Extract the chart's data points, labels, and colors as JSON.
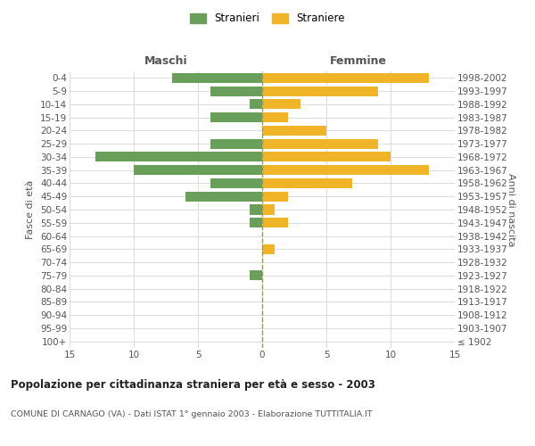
{
  "age_groups": [
    "100+",
    "95-99",
    "90-94",
    "85-89",
    "80-84",
    "75-79",
    "70-74",
    "65-69",
    "60-64",
    "55-59",
    "50-54",
    "45-49",
    "40-44",
    "35-39",
    "30-34",
    "25-29",
    "20-24",
    "15-19",
    "10-14",
    "5-9",
    "0-4"
  ],
  "birth_years": [
    "≤ 1902",
    "1903-1907",
    "1908-1912",
    "1913-1917",
    "1918-1922",
    "1923-1927",
    "1928-1932",
    "1933-1937",
    "1938-1942",
    "1943-1947",
    "1948-1952",
    "1953-1957",
    "1958-1962",
    "1963-1967",
    "1968-1972",
    "1973-1977",
    "1978-1982",
    "1983-1987",
    "1988-1992",
    "1993-1997",
    "1998-2002"
  ],
  "maschi": [
    0,
    0,
    0,
    0,
    0,
    1,
    0,
    0,
    0,
    1,
    1,
    6,
    4,
    10,
    13,
    4,
    0,
    4,
    1,
    4,
    7
  ],
  "femmine": [
    0,
    0,
    0,
    0,
    0,
    0,
    0,
    1,
    0,
    2,
    1,
    2,
    7,
    13,
    10,
    9,
    5,
    2,
    3,
    9,
    13
  ],
  "maschi_color": "#6a9e5b",
  "femmine_color": "#f0b429",
  "title": "Popolazione per cittadinanza straniera per età e sesso - 2003",
  "subtitle": "COMUNE DI CARNAGO (VA) - Dati ISTAT 1° gennaio 2003 - Elaborazione TUTTITALIA.IT",
  "xlabel_left": "Maschi",
  "xlabel_right": "Femmine",
  "ylabel_left": "Fasce di età",
  "ylabel_right": "Anni di nascita",
  "legend_maschi": "Stranieri",
  "legend_femmine": "Straniere",
  "xlim": 15,
  "bg_color": "#ffffff",
  "grid_color": "#dddddd",
  "bar_height": 0.75,
  "dashed_line_color": "#999966"
}
